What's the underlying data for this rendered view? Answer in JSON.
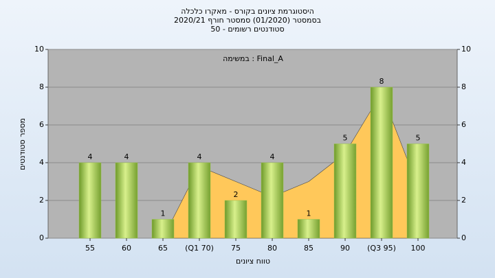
{
  "chart_data": {
    "type": "bar",
    "title": [
      "היסטוגרמת ציונים בקורס - מאקרו כלכלה",
      "בסמסטר  (01/2020)  סמסטר חורף 2020/21",
      "סטודנטים רשומים - 50"
    ],
    "annotation": "במשימה : Final_A",
    "x_label": "טווח ציונים",
    "y_label": "מספר סטודנטים",
    "categories": [
      "55",
      "60",
      "65",
      "(Q1 70)",
      "75",
      "80",
      "85",
      "90",
      "(Q3 95)",
      "100"
    ],
    "series": [
      {
        "type": "bar",
        "color": "#9cc450",
        "values": [
          4,
          4,
          1,
          4,
          2,
          4,
          1,
          5,
          8,
          5
        ]
      },
      {
        "type": "area",
        "color": "#ffc85a",
        "values": [
          null,
          null,
          0,
          3.8,
          3,
          2.2,
          3,
          4.5,
          7.7,
          2.7
        ]
      }
    ],
    "ylim": [
      0,
      10
    ],
    "yticks": [
      0,
      2,
      4,
      6,
      8,
      10
    ],
    "y2lim": [
      0,
      10
    ],
    "y2ticks": [
      0,
      2,
      4,
      6,
      8,
      10
    ],
    "grid": true
  }
}
